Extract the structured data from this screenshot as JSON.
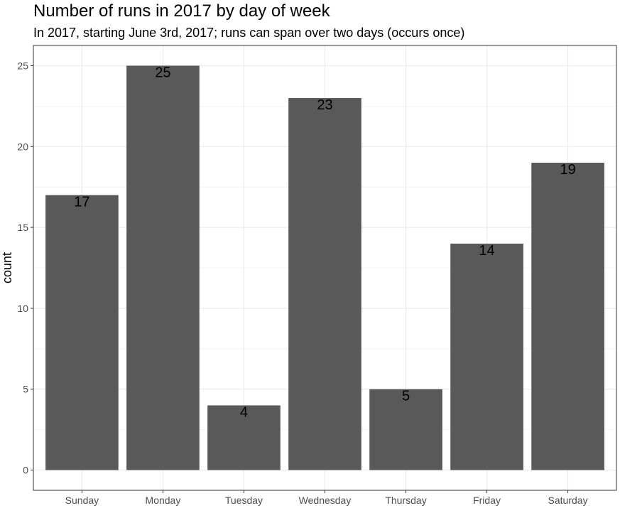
{
  "chart_data": {
    "type": "bar",
    "title": "Number of runs in 2017 by day of week",
    "subtitle": "In 2017, starting June 3rd, 2017; runs can span over two days (occurs once)",
    "xlabel": "",
    "ylabel": "count",
    "categories": [
      "Sunday",
      "Monday",
      "Tuesday",
      "Wednesday",
      "Thursday",
      "Friday",
      "Saturday"
    ],
    "values": [
      17,
      25,
      4,
      23,
      5,
      14,
      19
    ],
    "data_labels": [
      "17",
      "25",
      "4",
      "23",
      "5",
      "14",
      "19"
    ],
    "ylim": [
      -1.25,
      26.25
    ],
    "yticks": [
      0,
      5,
      10,
      15,
      20,
      25
    ],
    "grid": true,
    "bar_color": "#595959",
    "grid_color": "#ebebeb",
    "panel_border_color": "#333333"
  }
}
